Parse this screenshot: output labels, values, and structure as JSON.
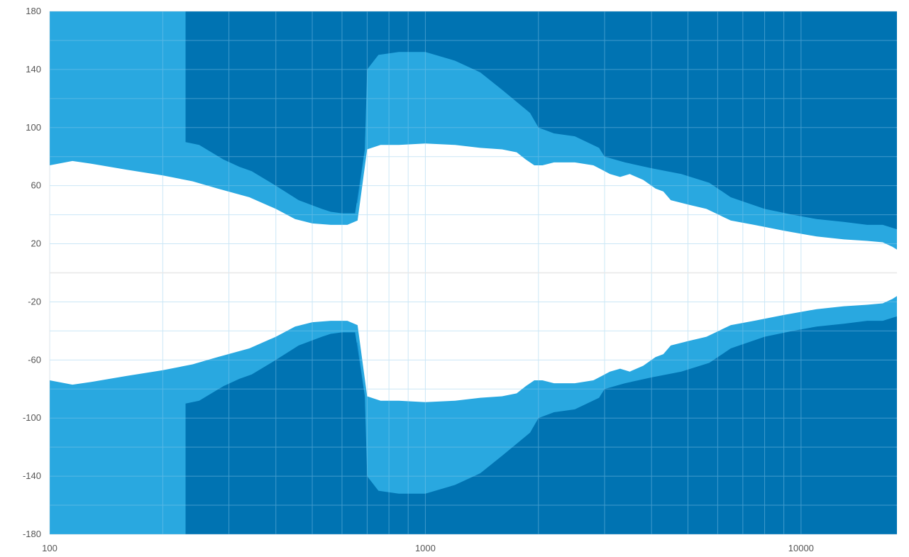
{
  "chart_data": {
    "type": "area",
    "title": "",
    "xlabel": "",
    "ylabel": "",
    "x_scale": "log",
    "xlim": [
      100,
      18000
    ],
    "ylim": [
      -180,
      180
    ],
    "grid": true,
    "legend": "none",
    "x_ticks": [
      100,
      1000,
      10000
    ],
    "x_tick_labels": [
      "100",
      "1000",
      "10000"
    ],
    "y_ticks": [
      180,
      140,
      100,
      60,
      20,
      -20,
      -60,
      -100,
      -140,
      -180
    ],
    "y_tick_labels": [
      "180",
      "140",
      "100",
      "60",
      "20",
      "-20",
      "-60",
      "-100",
      "-140",
      "-180"
    ],
    "colors": {
      "band_outer": "#29a8e0",
      "band_middle": "#1590d2",
      "band_inner": "#0073b2",
      "gap": "#ffffff",
      "grid": "#e6e6e6",
      "grid_on_fill": "#8ecbed",
      "zero_line": "#e8e8e8"
    },
    "fill_top": 180,
    "series": [
      {
        "band": "middle",
        "color": "#1590d2",
        "points": [
          [
            100,
            180
          ],
          [
            230,
            180
          ],
          [
            235,
            100
          ],
          [
            290,
            91
          ],
          [
            320,
            88
          ],
          [
            345,
            84
          ],
          [
            400,
            74
          ],
          [
            460,
            62
          ],
          [
            530,
            52
          ],
          [
            560,
            48
          ],
          [
            600,
            48
          ],
          [
            660,
            48
          ],
          [
            690,
            85
          ],
          [
            700,
            150
          ],
          [
            760,
            160
          ],
          [
            900,
            164
          ],
          [
            1000,
            163
          ],
          [
            1200,
            159
          ],
          [
            1400,
            145
          ],
          [
            1500,
            135
          ],
          [
            1700,
            123
          ],
          [
            2000,
            115
          ],
          [
            2500,
            108
          ],
          [
            2900,
            96
          ],
          [
            3000,
            91
          ],
          [
            3400,
            89
          ],
          [
            4000,
            87
          ],
          [
            5000,
            80
          ],
          [
            6000,
            74
          ],
          [
            7000,
            62
          ],
          [
            8000,
            56
          ],
          [
            9500,
            50
          ],
          [
            11000,
            46
          ],
          [
            13000,
            42
          ],
          [
            15000,
            42
          ],
          [
            16000,
            46
          ],
          [
            17000,
            44
          ],
          [
            18000,
            39
          ]
        ]
      },
      {
        "band": "inner",
        "color": "#0073b2",
        "points": [
          [
            100,
            180
          ],
          [
            230,
            180
          ],
          [
            230,
            90
          ],
          [
            250,
            88
          ],
          [
            290,
            78
          ],
          [
            320,
            73
          ],
          [
            345,
            70
          ],
          [
            400,
            60
          ],
          [
            460,
            50
          ],
          [
            530,
            44
          ],
          [
            560,
            42
          ],
          [
            600,
            41
          ],
          [
            650,
            41
          ],
          [
            690,
            85
          ],
          [
            700,
            140
          ],
          [
            750,
            150
          ],
          [
            850,
            152
          ],
          [
            1000,
            152
          ],
          [
            1200,
            146
          ],
          [
            1400,
            138
          ],
          [
            1600,
            126
          ],
          [
            1900,
            110
          ],
          [
            2000,
            100
          ],
          [
            2200,
            96
          ],
          [
            2500,
            94
          ],
          [
            2900,
            86
          ],
          [
            3000,
            80
          ],
          [
            3400,
            76
          ],
          [
            4000,
            72
          ],
          [
            4800,
            68
          ],
          [
            5700,
            62
          ],
          [
            6500,
            52
          ],
          [
            8000,
            44
          ],
          [
            9500,
            40
          ],
          [
            11000,
            37
          ],
          [
            13000,
            35
          ],
          [
            15000,
            33
          ],
          [
            16500,
            33
          ],
          [
            18000,
            30
          ]
        ]
      },
      {
        "band": "gap",
        "color": "#ffffff",
        "points": [
          [
            100,
            74
          ],
          [
            115,
            77
          ],
          [
            130,
            75
          ],
          [
            160,
            71
          ],
          [
            200,
            67
          ],
          [
            240,
            63
          ],
          [
            280,
            58
          ],
          [
            340,
            52
          ],
          [
            400,
            44
          ],
          [
            450,
            37
          ],
          [
            500,
            34
          ],
          [
            560,
            33
          ],
          [
            620,
            33
          ],
          [
            660,
            36
          ],
          [
            700,
            85
          ],
          [
            760,
            88
          ],
          [
            850,
            88
          ],
          [
            1000,
            89
          ],
          [
            1200,
            88
          ],
          [
            1400,
            86
          ],
          [
            1600,
            85
          ],
          [
            1750,
            83
          ],
          [
            1850,
            78
          ],
          [
            1950,
            74
          ],
          [
            2050,
            74
          ],
          [
            2200,
            76
          ],
          [
            2500,
            76
          ],
          [
            2800,
            74
          ],
          [
            2900,
            72
          ],
          [
            3100,
            68
          ],
          [
            3300,
            66
          ],
          [
            3500,
            68
          ],
          [
            3800,
            64
          ],
          [
            4100,
            58
          ],
          [
            4300,
            56
          ],
          [
            4500,
            50
          ],
          [
            5000,
            47
          ],
          [
            5600,
            44
          ],
          [
            6500,
            36
          ],
          [
            7500,
            33
          ],
          [
            9000,
            29
          ],
          [
            11000,
            25
          ],
          [
            13000,
            23
          ],
          [
            15000,
            22
          ],
          [
            16500,
            21
          ],
          [
            17500,
            18
          ],
          [
            18000,
            16
          ]
        ]
      }
    ]
  }
}
